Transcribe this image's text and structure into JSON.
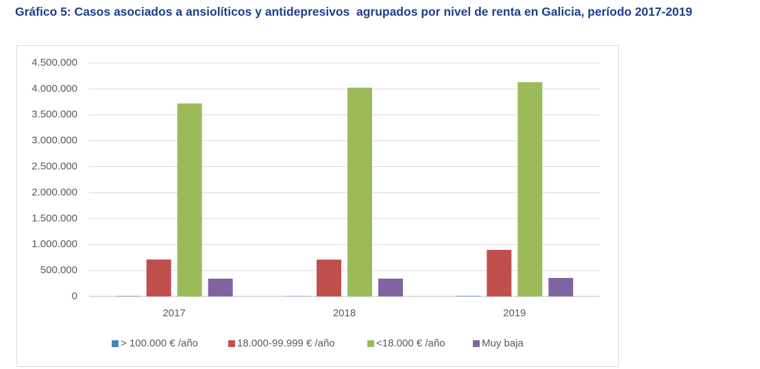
{
  "chart_data": {
    "type": "bar",
    "title": "Gráfico 5: Casos asociados a ansiolíticos y antidepresivos  agrupados por nivel de renta en Galicia, período 2017-2019",
    "categories": [
      "2017",
      "2018",
      "2019"
    ],
    "series": [
      {
        "name": "> 100.000 € /año",
        "color": "#4f81bd",
        "values": [
          8000,
          7000,
          9000
        ]
      },
      {
        "name": "18.000-99.999 € /año",
        "color": "#c0504d",
        "values": [
          712000,
          710000,
          897000
        ]
      },
      {
        "name": "<18.000 € /año",
        "color": "#9bbb59",
        "values": [
          3720000,
          4024000,
          4129000
        ]
      },
      {
        "name": "Muy baja",
        "color": "#8064a2",
        "values": [
          343000,
          343000,
          356000
        ]
      }
    ],
    "ylim": [
      0,
      4500000
    ],
    "yticks": [
      0,
      {
        "value": 500000,
        "label": "500.000"
      },
      {
        "value": 1000000,
        "label": "1.000.000"
      },
      {
        "value": 1500000,
        "label": "1.500.000"
      },
      {
        "value": 2000000,
        "label": "2.000.000"
      },
      {
        "value": 2500000,
        "label": "2.500.000"
      },
      {
        "value": 3000000,
        "label": "3.000.000"
      },
      {
        "value": 3500000,
        "label": "3.500.000"
      },
      {
        "value": 4000000,
        "label": "4.000.000"
      },
      {
        "value": 4500000,
        "label": "4.500.000"
      }
    ],
    "grid": true,
    "legend": "bottom"
  }
}
